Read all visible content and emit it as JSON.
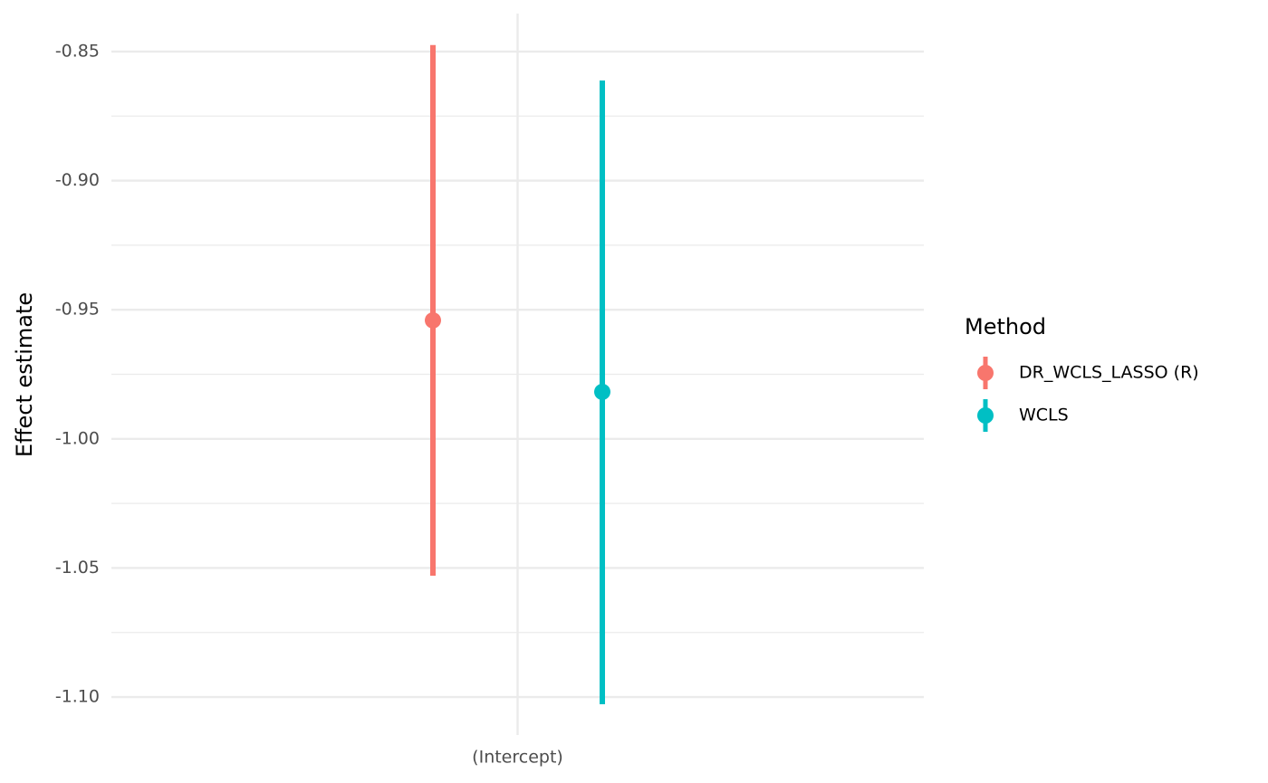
{
  "chart_data": {
    "type": "pointrange",
    "y_label": "Effect estimate",
    "categories": [
      "(Intercept)"
    ],
    "legend_title": "Method",
    "legend": "right",
    "grid": true,
    "ylim": [
      -1.1147,
      -0.8353
    ],
    "yticks": [
      -0.85,
      {
        "value": -0.9,
        "label": "-0.90"
      },
      -0.95,
      {
        "value": -1.0,
        "label": "-1.00"
      },
      -1.05,
      {
        "value": -1.1,
        "label": "-1.10"
      }
    ],
    "series": [
      {
        "name": "DR_WCLS_LASSO (R)",
        "color": "#f8766d",
        "values": [
          -0.9541
        ],
        "lower": [
          -1.053
        ],
        "upper": [
          -0.8475
        ]
      },
      {
        "name": "WCLS",
        "color": "#00bfc4",
        "values": [
          -0.9818
        ],
        "lower": [
          -1.1028
        ],
        "upper": [
          -0.8612
        ]
      }
    ]
  }
}
